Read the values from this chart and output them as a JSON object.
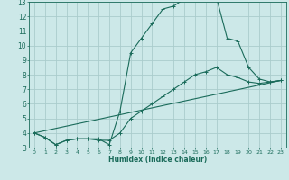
{
  "title": "",
  "xlabel": "Humidex (Indice chaleur)",
  "background_color": "#cce8e8",
  "grid_color": "#aacccc",
  "line_color": "#1a6b5a",
  "xlim": [
    -0.5,
    23.5
  ],
  "ylim": [
    3,
    13
  ],
  "xticks": [
    0,
    1,
    2,
    3,
    4,
    5,
    6,
    7,
    8,
    9,
    10,
    11,
    12,
    13,
    14,
    15,
    16,
    17,
    18,
    19,
    20,
    21,
    22,
    23
  ],
  "yticks": [
    3,
    4,
    5,
    6,
    7,
    8,
    9,
    10,
    11,
    12,
    13
  ],
  "line1_x": [
    0,
    1,
    2,
    3,
    4,
    5,
    6,
    7,
    8,
    9,
    10,
    11,
    12,
    13,
    14,
    15,
    16,
    17,
    18,
    19,
    20,
    21,
    22,
    23
  ],
  "line1_y": [
    4.0,
    3.7,
    3.2,
    3.5,
    3.6,
    3.6,
    3.6,
    3.2,
    5.5,
    9.5,
    10.5,
    11.5,
    12.5,
    12.7,
    13.2,
    13.4,
    13.2,
    13.3,
    10.5,
    10.3,
    8.5,
    7.7,
    7.5,
    7.6
  ],
  "line2_x": [
    0,
    1,
    2,
    3,
    4,
    5,
    6,
    7,
    8,
    9,
    10,
    11,
    12,
    13,
    14,
    15,
    16,
    17,
    18,
    19,
    20,
    21,
    22,
    23
  ],
  "line2_y": [
    4.0,
    3.7,
    3.2,
    3.5,
    3.6,
    3.6,
    3.5,
    3.5,
    4.0,
    5.0,
    5.5,
    6.0,
    6.5,
    7.0,
    7.5,
    8.0,
    8.2,
    8.5,
    8.0,
    7.8,
    7.5,
    7.4,
    7.5,
    7.6
  ],
  "line3_x": [
    0,
    23
  ],
  "line3_y": [
    4.0,
    7.6
  ],
  "xlabel_fontsize": 5.5,
  "tick_fontsize_x": 4.5,
  "tick_fontsize_y": 5.5
}
